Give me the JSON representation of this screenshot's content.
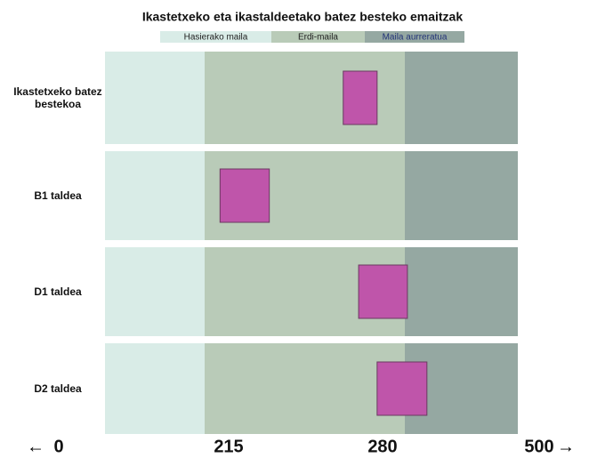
{
  "chart_data": {
    "type": "range",
    "title": "Ikastetxeko eta ikastaldeetako batez besteko emaitzak",
    "zones": [
      {
        "name": "Hasierako maila",
        "color": "#d9ece7",
        "range": [
          0,
          215
        ]
      },
      {
        "name": "Erdi-maila",
        "color": "#b9cbb8",
        "range": [
          215,
          280
        ]
      },
      {
        "name": "Maila aurreratua",
        "color": "#95a8a2",
        "range": [
          280,
          500
        ]
      }
    ],
    "categories": [
      "Ikastetxeko batez bestekoa",
      "B1 taldea",
      "D1 taldea",
      "D2 taldea"
    ],
    "low": [
      260,
      220,
      265,
      271
    ],
    "high": [
      271,
      236,
      285,
      323
    ],
    "color": "#bf55aa",
    "xlim": [
      0,
      500
    ],
    "xticks": [
      0,
      215,
      280,
      500
    ]
  }
}
